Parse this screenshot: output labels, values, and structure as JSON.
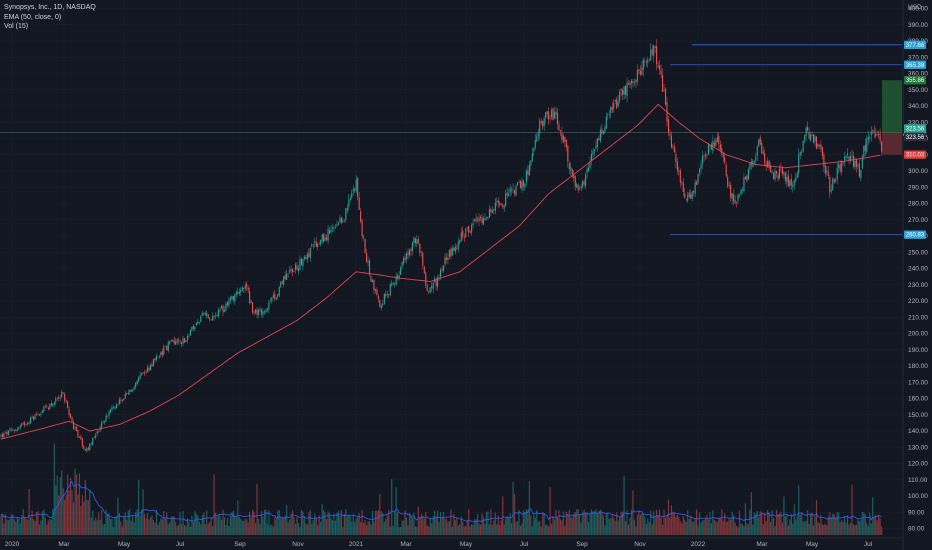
{
  "legend": {
    "symbol": "Synopsys, Inc., 1D, NASDAQ",
    "ema": "EMA (50, close, 0)",
    "vol": "Vol (15)"
  },
  "colors": {
    "background": "#131722",
    "up": "#26a69a",
    "down": "#ef5350",
    "ema": "#e0464a",
    "level_line": "#2962ff",
    "level_tag": "#2aa0d8",
    "vol_ma": "#2962ff",
    "target_zone": "#1e5631",
    "stop_zone": "#5c2a30"
  },
  "chart_data": {
    "type": "candlestick",
    "title": "Synopsys, Inc., 1D, NASDAQ",
    "currency_label": "USD",
    "y_axis_ticks": [
      "400.00",
      "390.00",
      "380.00",
      "370.00",
      "360.00",
      "350.00",
      "340.00",
      "330.00",
      "320.00",
      "310.00",
      "300.00",
      "290.00",
      "280.00",
      "270.00",
      "260.00",
      "250.00",
      "240.00",
      "230.00",
      "220.00",
      "210.00",
      "200.00",
      "190.00",
      "180.00",
      "170.00",
      "160.00",
      "150.00",
      "140.00",
      "130.00",
      "120.00",
      "110.00",
      "100.00",
      "90.00",
      "80.00"
    ],
    "x_axis_ticks": [
      "2020",
      "Mar",
      "May",
      "Jul",
      "Sep",
      "Nov",
      "2021",
      "Mar",
      "May",
      "Jul",
      "Sep",
      "Nov",
      "2022",
      "Mar",
      "May",
      "Jul"
    ],
    "ylim": [
      80,
      400
    ],
    "price_path": [
      [
        0,
        137
      ],
      [
        12,
        142
      ],
      [
        24,
        150
      ],
      [
        36,
        158
      ],
      [
        42,
        164
      ],
      [
        46,
        150
      ],
      [
        52,
        136
      ],
      [
        58,
        128
      ],
      [
        64,
        138
      ],
      [
        72,
        150
      ],
      [
        80,
        158
      ],
      [
        88,
        165
      ],
      [
        96,
        175
      ],
      [
        104,
        184
      ],
      [
        110,
        190
      ],
      [
        116,
        196
      ],
      [
        120,
        194
      ],
      [
        126,
        198
      ],
      [
        132,
        206
      ],
      [
        138,
        212
      ],
      [
        142,
        208
      ],
      [
        148,
        213
      ],
      [
        152,
        218
      ],
      [
        156,
        222
      ],
      [
        160,
        226
      ],
      [
        166,
        228
      ],
      [
        170,
        214
      ],
      [
        176,
        212
      ],
      [
        182,
        218
      ],
      [
        188,
        228
      ],
      [
        192,
        236
      ],
      [
        198,
        240
      ],
      [
        204,
        246
      ],
      [
        210,
        252
      ],
      [
        216,
        257
      ],
      [
        222,
        262
      ],
      [
        228,
        266
      ],
      [
        232,
        272
      ],
      [
        236,
        283
      ],
      [
        240,
        296
      ],
      [
        242,
        274
      ],
      [
        246,
        250
      ],
      [
        250,
        234
      ],
      [
        256,
        218
      ],
      [
        262,
        226
      ],
      [
        268,
        236
      ],
      [
        274,
        248
      ],
      [
        280,
        258
      ],
      [
        284,
        248
      ],
      [
        288,
        226
      ],
      [
        294,
        232
      ],
      [
        300,
        246
      ],
      [
        306,
        252
      ],
      [
        310,
        258
      ],
      [
        314,
        262
      ],
      [
        320,
        268
      ],
      [
        326,
        272
      ],
      [
        332,
        276
      ],
      [
        338,
        280
      ],
      [
        344,
        286
      ],
      [
        348,
        290
      ],
      [
        352,
        290
      ],
      [
        356,
        300
      ],
      [
        360,
        312
      ],
      [
        364,
        328
      ],
      [
        368,
        334
      ],
      [
        372,
        336
      ],
      [
        376,
        330
      ],
      [
        380,
        318
      ],
      [
        384,
        304
      ],
      [
        388,
        290
      ],
      [
        392,
        288
      ],
      [
        396,
        298
      ],
      [
        400,
        310
      ],
      [
        404,
        320
      ],
      [
        408,
        328
      ],
      [
        412,
        336
      ],
      [
        416,
        342
      ],
      [
        420,
        348
      ],
      [
        424,
        352
      ],
      [
        428,
        356
      ],
      [
        432,
        360
      ],
      [
        436,
        368
      ],
      [
        440,
        376
      ],
      [
        444,
        368
      ],
      [
        448,
        348
      ],
      [
        452,
        318
      ],
      [
        456,
        306
      ],
      [
        460,
        292
      ],
      [
        464,
        282
      ],
      [
        468,
        290
      ],
      [
        472,
        300
      ],
      [
        476,
        312
      ],
      [
        480,
        316
      ],
      [
        484,
        320
      ],
      [
        488,
        306
      ],
      [
        492,
        288
      ],
      [
        496,
        282
      ],
      [
        500,
        290
      ],
      [
        504,
        296
      ],
      [
        508,
        306
      ],
      [
        512,
        316
      ],
      [
        516,
        306
      ],
      [
        520,
        302
      ],
      [
        524,
        296
      ],
      [
        528,
        300
      ],
      [
        532,
        294
      ],
      [
        536,
        292
      ],
      [
        540,
        312
      ],
      [
        544,
        324
      ],
      [
        548,
        320
      ],
      [
        552,
        316
      ],
      [
        556,
        304
      ],
      [
        560,
        290
      ],
      [
        564,
        296
      ],
      [
        568,
        305
      ],
      [
        572,
        312
      ],
      [
        576,
        304
      ],
      [
        580,
        300
      ],
      [
        584,
        316
      ],
      [
        588,
        326
      ],
      [
        592,
        322
      ],
      [
        596,
        312
      ]
    ],
    "ema_path": [
      [
        0,
        135
      ],
      [
        30,
        142
      ],
      [
        46,
        146
      ],
      [
        60,
        140
      ],
      [
        80,
        144
      ],
      [
        100,
        152
      ],
      [
        120,
        162
      ],
      [
        140,
        175
      ],
      [
        160,
        188
      ],
      [
        180,
        198
      ],
      [
        200,
        208
      ],
      [
        220,
        222
      ],
      [
        240,
        238
      ],
      [
        256,
        236
      ],
      [
        270,
        234
      ],
      [
        290,
        232
      ],
      [
        310,
        238
      ],
      [
        330,
        252
      ],
      [
        350,
        266
      ],
      [
        370,
        286
      ],
      [
        390,
        300
      ],
      [
        410,
        314
      ],
      [
        430,
        328
      ],
      [
        444,
        341
      ],
      [
        458,
        330
      ],
      [
        472,
        320
      ],
      [
        490,
        310
      ],
      [
        510,
        304
      ],
      [
        530,
        302
      ],
      [
        550,
        304
      ],
      [
        570,
        306
      ],
      [
        596,
        310
      ]
    ],
    "volume_range": [
      80,
      130
    ],
    "volume_ma_level": 95,
    "levels": [
      {
        "label": "377.66",
        "value": 377.66
      },
      {
        "label": "365.38",
        "value": 365.38
      },
      {
        "label": "260.83",
        "value": 260.83
      }
    ],
    "position": {
      "target": 355.86,
      "entry": 323.56,
      "stop": 310.03
    },
    "price_tags": [
      {
        "label": "355.86",
        "value": 355.86,
        "kind": "target"
      },
      {
        "label": "323.56",
        "value": 326.2,
        "kind": "current"
      },
      {
        "label": "05:22:15",
        "value": 322.1,
        "kind": "countdown"
      },
      {
        "label": "323.56",
        "value": 321.0,
        "kind": "entry"
      },
      {
        "label": "310.03",
        "value": 310.03,
        "kind": "stop"
      }
    ]
  }
}
